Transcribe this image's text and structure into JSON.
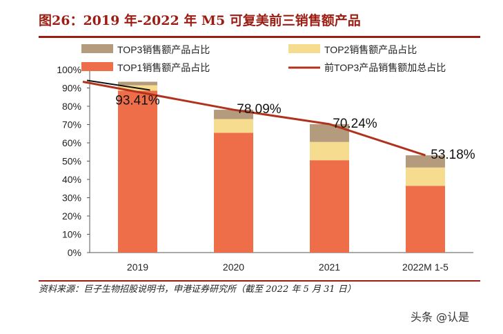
{
  "header": {
    "title": "图26：2019 年-2022 年 M5 可复美前三销售额产品"
  },
  "chart_data": {
    "type": "bar",
    "stacked": true,
    "title": "图26：2019 年-2022 年 M5 可复美前三销售额产品",
    "categories": [
      "2019",
      "2020",
      "2021",
      "2022M 1-5"
    ],
    "series": [
      {
        "name": "TOP1销售额产品占比",
        "values": [
          88.5,
          65.5,
          50.5,
          36.5
        ],
        "color": "#ef6e4a"
      },
      {
        "name": "TOP2销售额产品占比",
        "values": [
          3.0,
          7.5,
          10.0,
          10.0
        ],
        "color": "#f6dc8e"
      },
      {
        "name": "TOP3销售额产品占比",
        "values": [
          1.91,
          5.09,
          9.74,
          6.68
        ],
        "color": "#b49b7d"
      }
    ],
    "line": {
      "name": "前TOP3产品销售额加总占比",
      "values": [
        93.41,
        78.09,
        70.24,
        53.18
      ],
      "labels": [
        "93.41%",
        "78.09%",
        "70.24%",
        "53.18%"
      ],
      "color": "#b1321c"
    },
    "legend_order": [
      "TOP3销售额产品占比",
      "TOP2销售额产品占比",
      "TOP1销售额产品占比",
      "前TOP3产品销售额加总占比"
    ],
    "yticks": [
      "0%",
      "10%",
      "20%",
      "30%",
      "40%",
      "50%",
      "60%",
      "70%",
      "80%",
      "90%",
      "100%"
    ],
    "ylim": [
      0,
      100
    ],
    "xlabel": "",
    "ylabel": "",
    "legend_position": "top"
  },
  "footer": {
    "source": "资料来源：巨子生物招股说明书，申港证券研究所（截至 2022 年 5 月 31 日）",
    "watermark": "头条 @认是"
  }
}
